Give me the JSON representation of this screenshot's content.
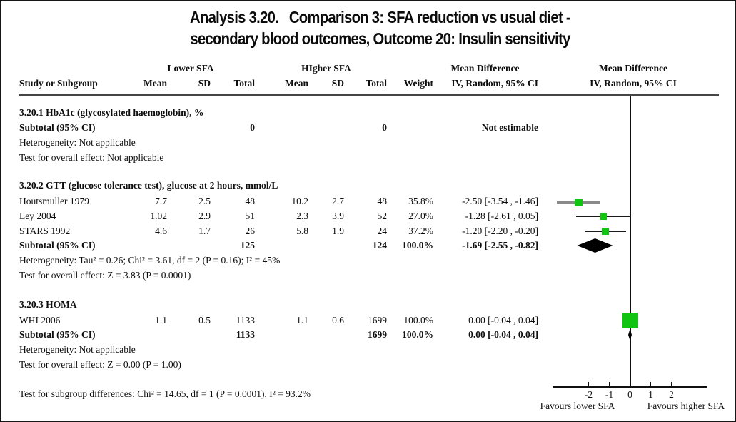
{
  "title_line1": "Analysis 3.20.   Comparison 3: SFA reduction vs usual diet -",
  "title_line2": "secondary blood outcomes, Outcome 20: Insulin sensitivity",
  "header": {
    "group_lower": "Lower SFA",
    "group_higher": "HIgher SFA",
    "group_md1": "Mean Difference",
    "group_md2": "Mean Difference",
    "col_study": "Study or Subgroup",
    "col_mean1": "Mean",
    "col_sd1": "SD",
    "col_total1": "Total",
    "col_mean2": "Mean",
    "col_sd2": "SD",
    "col_total2": "Total",
    "col_weight": "Weight",
    "col_ci": "IV, Random, 95% CI",
    "col_ci2": "IV, Random, 95% CI"
  },
  "s1": {
    "heading": "3.20.1 HbA1c (glycosylated haemoglobin), %",
    "subtotal": {
      "label": "Subtotal (95% CI)",
      "total1": "0",
      "total2": "0",
      "ci": "Not estimable"
    },
    "heterogeneity": "Heterogeneity: Not applicable",
    "overall": "Test for overall effect: Not applicable"
  },
  "s2": {
    "heading": "3.20.2 GTT (glucose tolerance test), glucose at 2 hours, mmol/L",
    "studies": [
      {
        "name": "Houtsmuller 1979",
        "mean1": "7.7",
        "sd1": "2.5",
        "total1": "48",
        "mean2": "10.2",
        "sd2": "2.7",
        "total2": "48",
        "weight": "35.8%",
        "ci": "-2.50 [-3.54 , -1.46]"
      },
      {
        "name": "Ley 2004",
        "mean1": "1.02",
        "sd1": "2.9",
        "total1": "51",
        "mean2": "2.3",
        "sd2": "3.9",
        "total2": "52",
        "weight": "27.0%",
        "ci": "-1.28 [-2.61 , 0.05]"
      },
      {
        "name": "STARS 1992",
        "mean1": "4.6",
        "sd1": "1.7",
        "total1": "26",
        "mean2": "5.8",
        "sd2": "1.9",
        "total2": "24",
        "weight": "37.2%",
        "ci": "-1.20 [-2.20 , -0.20]"
      }
    ],
    "subtotal": {
      "label": "Subtotal (95% CI)",
      "total1": "125",
      "total2": "124",
      "weight": "100.0%",
      "ci": "-1.69 [-2.55 , -0.82]"
    },
    "heterogeneity": "Heterogeneity: Tau² = 0.26; Chi² = 3.61, df = 2 (P = 0.16); I² = 45%",
    "overall": "Test for overall effect: Z = 3.83 (P = 0.0001)"
  },
  "s3": {
    "heading": "3.20.3 HOMA",
    "studies": [
      {
        "name": "WHI 2006",
        "mean1": "1.1",
        "sd1": "0.5",
        "total1": "1133",
        "mean2": "1.1",
        "sd2": "0.6",
        "total2": "1699",
        "weight": "100.0%",
        "ci": "0.00 [-0.04 , 0.04]"
      }
    ],
    "subtotal": {
      "label": "Subtotal (95% CI)",
      "total1": "1133",
      "total2": "1699",
      "weight": "100.0%",
      "ci": "0.00 [-0.04 , 0.04]"
    },
    "heterogeneity": "Heterogeneity: Not applicable",
    "overall": "Test for overall effect: Z = 0.00 (P = 1.00)"
  },
  "footer": "Test for subgroup differences: Chi² = 14.65, df = 1 (P = 0.0001), I² = 93.2%",
  "colors": {
    "marker_green": "#12c412",
    "diamond_black": "#000000",
    "ci_line_dark": "#1a1a1a",
    "ci_line_gray": "#8a8a8a"
  },
  "chart_data": {
    "type": "forest",
    "effect_measure": "Mean Difference, IV, Random, 95% CI",
    "x_axis": {
      "ticks": [
        -2,
        -1,
        0,
        1,
        2
      ],
      "label_left": "Favours lower SFA",
      "label_right": "Favours higher SFA",
      "zero_line": 0
    },
    "subgroups": [
      {
        "name": "3.20.1 HbA1c (glycosylated haemoglobin), %",
        "studies": [],
        "subtotal": null,
        "note": "Not estimable"
      },
      {
        "name": "3.20.2 GTT (glucose tolerance test), glucose at 2 hours, mmol/L",
        "studies": [
          {
            "study": "Houtsmuller 1979",
            "md": -2.5,
            "lo": -3.54,
            "hi": -1.46,
            "weight": 35.8
          },
          {
            "study": "Ley 2004",
            "md": -1.28,
            "lo": -2.61,
            "hi": 0.05,
            "weight": 27.0
          },
          {
            "study": "STARS 1992",
            "md": -1.2,
            "lo": -2.2,
            "hi": -0.2,
            "weight": 37.2
          }
        ],
        "subtotal": {
          "md": -1.69,
          "lo": -2.55,
          "hi": -0.82
        }
      },
      {
        "name": "3.20.3 HOMA",
        "studies": [
          {
            "study": "WHI 2006",
            "md": 0.0,
            "lo": -0.04,
            "hi": 0.04,
            "weight": 100.0
          }
        ],
        "subtotal": {
          "md": 0.0,
          "lo": -0.04,
          "hi": 0.04
        }
      }
    ]
  }
}
